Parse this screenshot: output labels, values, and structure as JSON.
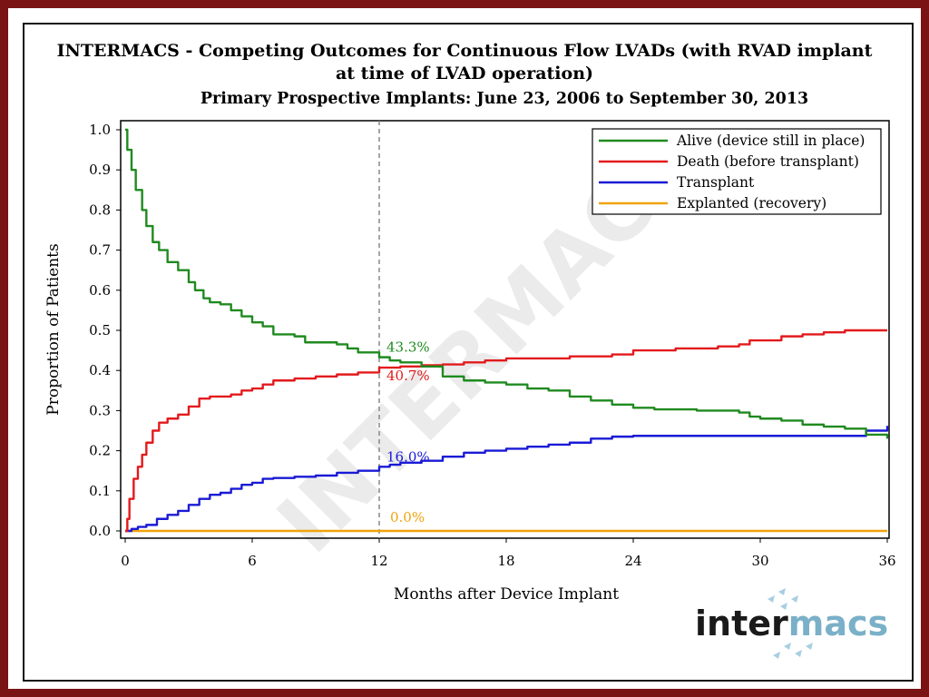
{
  "chart_data": {
    "type": "line",
    "title": "INTERMACS - Competing Outcomes for Continuous Flow LVADs (with RVAD implant",
    "title_line2": "at time of LVAD operation)",
    "subtitle": "Primary Prospective Implants: June 23, 2006 to September 30, 2013",
    "xlabel": "Months after Device Implant",
    "ylabel": "Proportion of Patients",
    "xlim": [
      0,
      36
    ],
    "ylim": [
      0,
      1.0
    ],
    "xticks": [
      "0",
      "6",
      "12",
      "18",
      "24",
      "30",
      "36"
    ],
    "yticks": [
      "0.0",
      "0.1",
      "0.2",
      "0.3",
      "0.4",
      "0.5",
      "0.6",
      "0.7",
      "0.8",
      "0.9",
      "1.0"
    ],
    "grid": false,
    "legend_position": "top-right",
    "reference_line_x": 12,
    "watermark": "INTERMACS",
    "series": [
      {
        "name": "Alive (device still in place)",
        "color": "#1f8a1f",
        "x": [
          0,
          0.1,
          0.3,
          0.5,
          0.8,
          1.0,
          1.3,
          1.6,
          2.0,
          2.5,
          3.0,
          3.3,
          3.7,
          4.0,
          4.5,
          5.0,
          5.5,
          6.0,
          6.5,
          7.0,
          8.0,
          8.5,
          9.0,
          10.0,
          10.5,
          11.0,
          12.0,
          12.5,
          13.0,
          14.0,
          15.0,
          16.0,
          17.0,
          18.0,
          19.0,
          20.0,
          21.0,
          22.0,
          23.0,
          24.0,
          25.0,
          27.0,
          29.0,
          29.5,
          30.0,
          31.0,
          32.0,
          33.0,
          34.0,
          35.0,
          36.0
        ],
        "y": [
          1.0,
          0.95,
          0.9,
          0.85,
          0.8,
          0.76,
          0.72,
          0.7,
          0.67,
          0.65,
          0.62,
          0.6,
          0.58,
          0.57,
          0.565,
          0.55,
          0.535,
          0.52,
          0.51,
          0.49,
          0.485,
          0.47,
          0.47,
          0.465,
          0.455,
          0.445,
          0.433,
          0.425,
          0.42,
          0.41,
          0.385,
          0.375,
          0.37,
          0.365,
          0.355,
          0.35,
          0.335,
          0.325,
          0.315,
          0.307,
          0.303,
          0.3,
          0.295,
          0.285,
          0.28,
          0.275,
          0.265,
          0.26,
          0.255,
          0.24,
          0.23
        ]
      },
      {
        "name": "Death (before transplant)",
        "color": "#e31a1c",
        "x": [
          0,
          0.1,
          0.2,
          0.4,
          0.6,
          0.8,
          1.0,
          1.3,
          1.6,
          2.0,
          2.5,
          3.0,
          3.5,
          4.0,
          5.0,
          5.5,
          6.0,
          6.5,
          7.0,
          8.0,
          9.0,
          10.0,
          11.0,
          12.0,
          13.0,
          14.0,
          15.0,
          16.0,
          17.0,
          18.0,
          20.0,
          21.0,
          22.0,
          23.0,
          24.0,
          26.0,
          28.0,
          29.0,
          29.5,
          31.0,
          32.0,
          33.0,
          34.0,
          35.0,
          36.0
        ],
        "y": [
          0.0,
          0.03,
          0.08,
          0.13,
          0.16,
          0.19,
          0.22,
          0.25,
          0.27,
          0.28,
          0.29,
          0.31,
          0.33,
          0.335,
          0.34,
          0.35,
          0.355,
          0.365,
          0.375,
          0.38,
          0.385,
          0.39,
          0.395,
          0.407,
          0.41,
          0.413,
          0.415,
          0.42,
          0.425,
          0.43,
          0.43,
          0.435,
          0.435,
          0.44,
          0.45,
          0.455,
          0.46,
          0.465,
          0.475,
          0.485,
          0.49,
          0.495,
          0.5,
          0.5,
          0.5
        ]
      },
      {
        "name": "Transplant",
        "color": "#1a1ad6",
        "x": [
          0,
          0.3,
          0.6,
          1.0,
          1.5,
          2.0,
          2.5,
          3.0,
          3.5,
          4.0,
          4.5,
          5.0,
          5.5,
          6.0,
          6.5,
          7.0,
          8.0,
          9.0,
          10.0,
          11.0,
          12.0,
          12.5,
          13.0,
          14.0,
          15.0,
          16.0,
          17.0,
          18.0,
          19.0,
          20.0,
          21.0,
          22.0,
          23.0,
          24.0,
          26.0,
          28.0,
          30.0,
          32.0,
          34.0,
          35.0,
          36.0
        ],
        "y": [
          0.0,
          0.005,
          0.01,
          0.015,
          0.03,
          0.04,
          0.05,
          0.065,
          0.08,
          0.09,
          0.095,
          0.105,
          0.115,
          0.12,
          0.13,
          0.132,
          0.135,
          0.138,
          0.145,
          0.15,
          0.16,
          0.165,
          0.17,
          0.175,
          0.185,
          0.195,
          0.2,
          0.205,
          0.21,
          0.215,
          0.22,
          0.23,
          0.235,
          0.237,
          0.237,
          0.237,
          0.237,
          0.237,
          0.237,
          0.25,
          0.262
        ]
      },
      {
        "name": "Explanted (recovery)",
        "color": "#f0a30a",
        "x": [
          0,
          36
        ],
        "y": [
          0.0,
          0.0
        ]
      }
    ],
    "annotations": [
      {
        "text": "43.3%",
        "x": 12,
        "y": 0.433,
        "color": "#1f8a1f"
      },
      {
        "text": "40.7%",
        "x": 12,
        "y": 0.407,
        "color": "#e31a1c"
      },
      {
        "text": "16.0%",
        "x": 12,
        "y": 0.16,
        "color": "#1a1ad6"
      },
      {
        "text": "0.0%",
        "x": 12,
        "y": 0.0,
        "color": "#f0a30a"
      }
    ]
  },
  "logo": {
    "text_dark": "inter",
    "text_light": "macs",
    "dark_color": "#1a1a1a",
    "light_color": "#7ab0c8"
  }
}
